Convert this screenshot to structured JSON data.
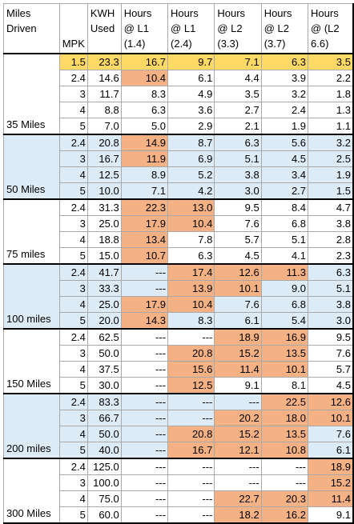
{
  "colors": {
    "header_highlight": "#ffd966",
    "orange_highlight": "#f4b183",
    "blue_band": "#ddebf7",
    "white_band": "#ffffff"
  },
  "headers": [
    "Miles Driven",
    "MPK",
    "KWH Used",
    "Hours @ L1 (1.4)",
    "Hours @ L1 (2.4)",
    "Hours @ L2 (3.3)",
    "Hours @ L2 (3.7)",
    "Hours @ (L2 6.6)"
  ],
  "groups": [
    {
      "label": "35 Miles",
      "band": "white",
      "rows": [
        {
          "mpk": "1.5",
          "kwh": "23.3",
          "h": [
            "16.7",
            "9.7",
            "7.1",
            "6.3",
            "3.5"
          ],
          "yellow": true,
          "orange": [
            0
          ]
        },
        {
          "mpk": "2.4",
          "kwh": "14.6",
          "h": [
            "10.4",
            "6.1",
            "4.4",
            "3.9",
            "2.2"
          ],
          "orange": [
            0
          ]
        },
        {
          "mpk": "3",
          "kwh": "11.7",
          "h": [
            "8.3",
            "4.9",
            "3.5",
            "3.2",
            "1.8"
          ],
          "orange": []
        },
        {
          "mpk": "4",
          "kwh": "8.8",
          "h": [
            "6.3",
            "3.6",
            "2.7",
            "2.4",
            "1.3"
          ],
          "orange": []
        },
        {
          "mpk": "5",
          "kwh": "7.0",
          "h": [
            "5.0",
            "2.9",
            "2.1",
            "1.9",
            "1.1"
          ],
          "orange": []
        }
      ]
    },
    {
      "label": "50 Miles",
      "band": "blue",
      "rows": [
        {
          "mpk": "2.4",
          "kwh": "20.8",
          "h": [
            "14.9",
            "8.7",
            "6.3",
            "5.6",
            "3.2"
          ],
          "orange": [
            0
          ]
        },
        {
          "mpk": "3",
          "kwh": "16.7",
          "h": [
            "11.9",
            "6.9",
            "5.1",
            "4.5",
            "2.5"
          ],
          "orange": [
            0
          ]
        },
        {
          "mpk": "4",
          "kwh": "12.5",
          "h": [
            "8.9",
            "5.2",
            "3.8",
            "3.4",
            "1.9"
          ],
          "orange": []
        },
        {
          "mpk": "5",
          "kwh": "10.0",
          "h": [
            "7.1",
            "4.2",
            "3.0",
            "2.7",
            "1.5"
          ],
          "orange": []
        }
      ]
    },
    {
      "label": "75 miles",
      "band": "white",
      "rows": [
        {
          "mpk": "2.4",
          "kwh": "31.3",
          "h": [
            "22.3",
            "13.0",
            "9.5",
            "8.4",
            "4.7"
          ],
          "orange": [
            0,
            1
          ]
        },
        {
          "mpk": "3",
          "kwh": "25.0",
          "h": [
            "17.9",
            "10.4",
            "7.6",
            "6.8",
            "3.8"
          ],
          "orange": [
            0,
            1
          ]
        },
        {
          "mpk": "4",
          "kwh": "18.8",
          "h": [
            "13.4",
            "7.8",
            "5.7",
            "5.1",
            "2.8"
          ],
          "orange": [
            0
          ]
        },
        {
          "mpk": "5",
          "kwh": "15.0",
          "h": [
            "10.7",
            "6.3",
            "4.5",
            "4.1",
            "2.3"
          ],
          "orange": [
            0
          ]
        }
      ]
    },
    {
      "label": "100 miles",
      "band": "blue",
      "rows": [
        {
          "mpk": "2.4",
          "kwh": "41.7",
          "h": [
            "---",
            "17.4",
            "12.6",
            "11.3",
            "6.3"
          ],
          "orange": [
            1,
            2,
            3
          ]
        },
        {
          "mpk": "3",
          "kwh": "33.3",
          "h": [
            "---",
            "13.9",
            "10.1",
            "9.0",
            "5.1"
          ],
          "orange": [
            1,
            2
          ]
        },
        {
          "mpk": "4",
          "kwh": "25.0",
          "h": [
            "17.9",
            "10.4",
            "7.6",
            "6.8",
            "3.8"
          ],
          "orange": [
            0,
            1
          ]
        },
        {
          "mpk": "5",
          "kwh": "20.0",
          "h": [
            "14.3",
            "8.3",
            "6.1",
            "5.4",
            "3.0"
          ],
          "orange": [
            0
          ]
        }
      ]
    },
    {
      "label": "150 Miles",
      "band": "white",
      "rows": [
        {
          "mpk": "2.4",
          "kwh": "62.5",
          "h": [
            "---",
            "---",
            "18.9",
            "16.9",
            "9.5"
          ],
          "orange": [
            2,
            3
          ]
        },
        {
          "mpk": "3",
          "kwh": "50.0",
          "h": [
            "---",
            "20.8",
            "15.2",
            "13.5",
            "7.6"
          ],
          "orange": [
            1,
            2,
            3
          ]
        },
        {
          "mpk": "4",
          "kwh": "37.5",
          "h": [
            "---",
            "15.6",
            "11.4",
            "10.1",
            "5.7"
          ],
          "orange": [
            1,
            2,
            3
          ]
        },
        {
          "mpk": "5",
          "kwh": "30.0",
          "h": [
            "---",
            "12.5",
            "9.1",
            "8.1",
            "4.5"
          ],
          "orange": [
            1
          ]
        }
      ]
    },
    {
      "label": "200 miles",
      "band": "blue",
      "rows": [
        {
          "mpk": "2.4",
          "kwh": "83.3",
          "h": [
            "---",
            "---",
            "---",
            "22.5",
            "12.6"
          ],
          "orange": [
            3,
            4
          ]
        },
        {
          "mpk": "3",
          "kwh": "66.7",
          "h": [
            "---",
            "---",
            "20.2",
            "18.0",
            "10.1"
          ],
          "orange": [
            2,
            3,
            4
          ]
        },
        {
          "mpk": "4",
          "kwh": "50.0",
          "h": [
            "---",
            "20.8",
            "15.2",
            "13.5",
            "7.6"
          ],
          "orange": [
            1,
            2,
            3
          ]
        },
        {
          "mpk": "5",
          "kwh": "40.0",
          "h": [
            "---",
            "16.7",
            "12.1",
            "10.8",
            "6.1"
          ],
          "orange": [
            1,
            2,
            3
          ]
        }
      ]
    },
    {
      "label": "300 Miles",
      "band": "white",
      "rows": [
        {
          "mpk": "2.4",
          "kwh": "125.0",
          "h": [
            "---",
            "---",
            "---",
            "---",
            "18.9"
          ],
          "orange": [
            4
          ]
        },
        {
          "mpk": "3",
          "kwh": "100.0",
          "h": [
            "---",
            "---",
            "---",
            "---",
            "15.2"
          ],
          "orange": [
            4
          ]
        },
        {
          "mpk": "4",
          "kwh": "75.0",
          "h": [
            "---",
            "---",
            "22.7",
            "20.3",
            "11.4"
          ],
          "orange": [
            2,
            3,
            4
          ]
        },
        {
          "mpk": "5",
          "kwh": "60.0",
          "h": [
            "---",
            "---",
            "18.2",
            "16.2",
            "9.1"
          ],
          "orange": [
            2,
            3
          ]
        }
      ]
    }
  ]
}
